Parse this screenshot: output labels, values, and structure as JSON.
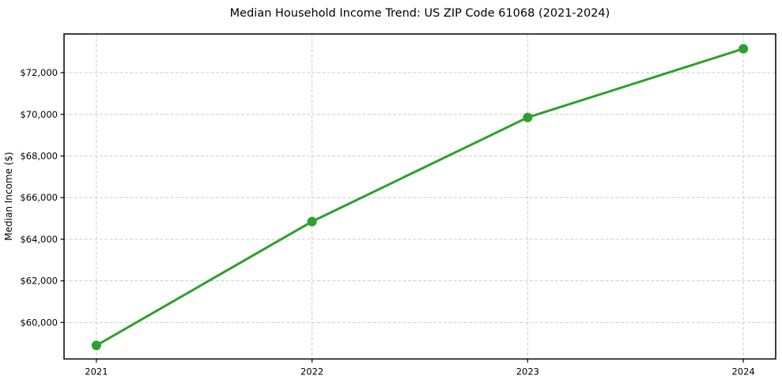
{
  "chart_data": {
    "type": "line",
    "title": "Median Household Income Trend: US ZIP Code 61068 (2021-2024)",
    "xlabel": "",
    "ylabel": "Median Income ($)",
    "x": [
      2021,
      2022,
      2023,
      2024
    ],
    "xtick_labels": [
      "2021",
      "2022",
      "2023",
      "2024"
    ],
    "series": [
      {
        "name": "Median Household Income",
        "values": [
          58900,
          64850,
          69850,
          73150
        ]
      }
    ],
    "yticks": [
      60000,
      62000,
      64000,
      66000,
      68000,
      70000,
      72000
    ],
    "ytick_labels": [
      "$60,000",
      "$62,000",
      "$64,000",
      "$66,000",
      "$68,000",
      "$70,000",
      "$72,000"
    ],
    "xlim": [
      2020.85,
      2024.15
    ],
    "ylim": [
      58250,
      73860
    ],
    "grid": true,
    "grid_style": "dashed",
    "legend": "none",
    "line_color": "#2ca02c",
    "marker": "circle",
    "marker_color": "#2ca02c",
    "grid_color": "#cccccc",
    "spine_color": "#000000",
    "text_color": "#000000",
    "background": "#ffffff"
  }
}
